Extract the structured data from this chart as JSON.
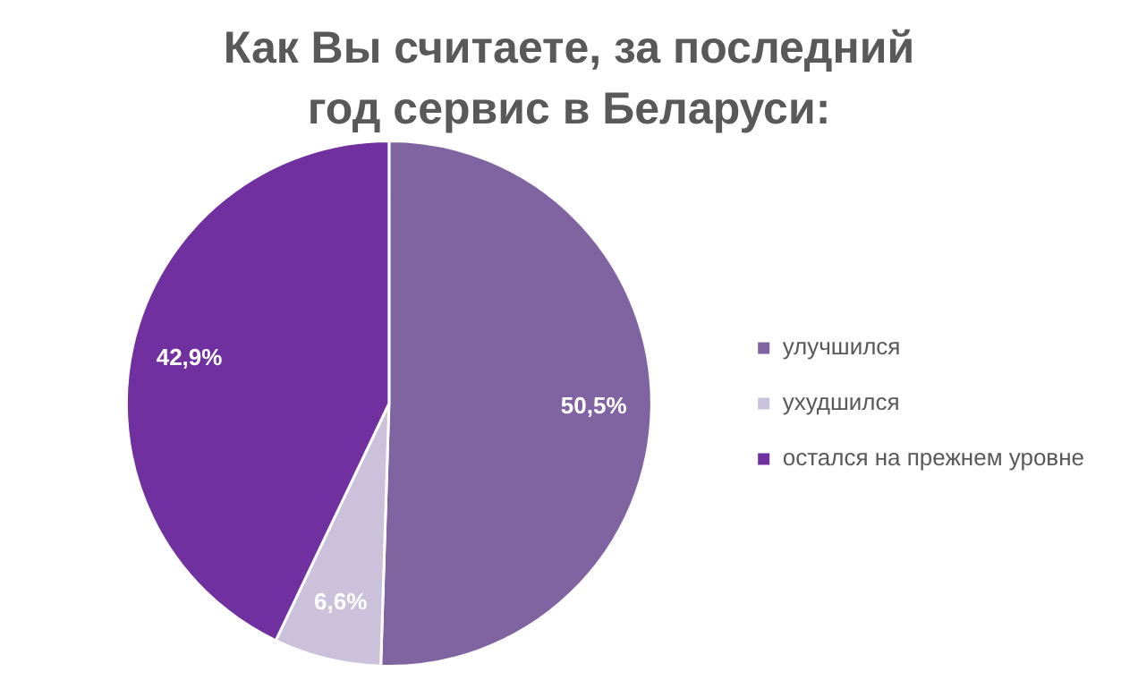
{
  "chart_data": {
    "type": "pie",
    "title": "Как Вы считаете, за последний год сервис в Беларуси:",
    "categories": [
      "улучшился",
      "ухудшился",
      "остался на прежнем уровне"
    ],
    "values": [
      50.5,
      6.6,
      42.9
    ],
    "value_labels": [
      "50,5%",
      "6,6%",
      "42,9%"
    ],
    "colors": [
      "#8064a2",
      "#ccc1da",
      "#7030a0"
    ],
    "legend": "right"
  }
}
